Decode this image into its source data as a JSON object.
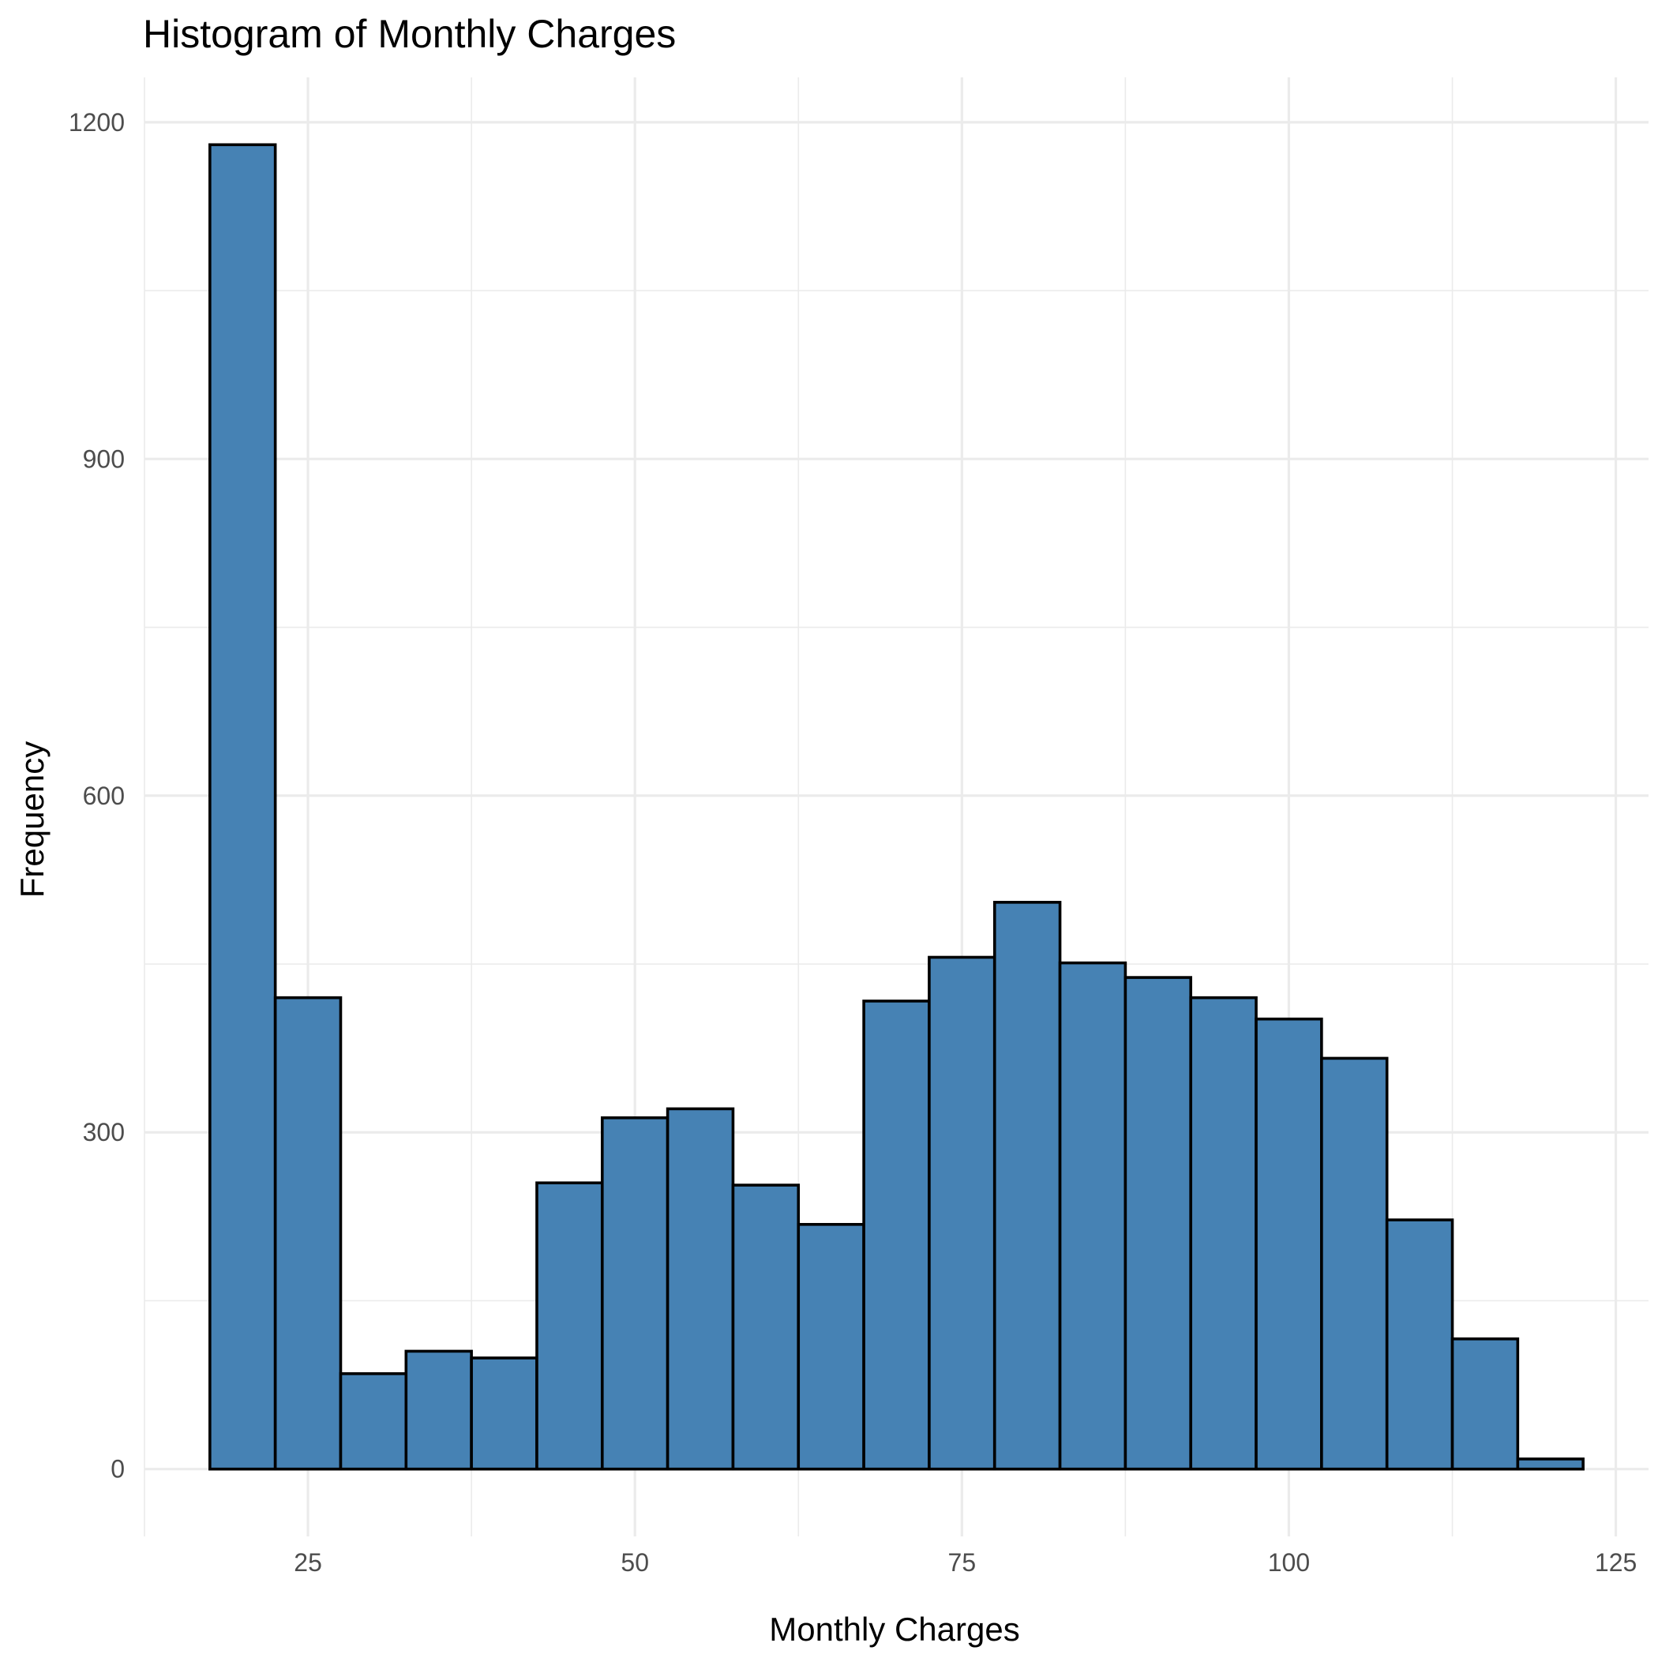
{
  "chart_data": {
    "type": "bar",
    "subtype": "histogram",
    "title": "Histogram of Monthly Charges",
    "xlabel": "Monthly Charges",
    "ylabel": "Frequency",
    "bin_width": 5,
    "bin_edges": [
      17.5,
      22.5,
      27.5,
      32.5,
      37.5,
      42.5,
      47.5,
      52.5,
      57.5,
      62.5,
      67.5,
      72.5,
      77.5,
      82.5,
      87.5,
      92.5,
      97.5,
      102.5,
      107.5,
      112.5,
      117.5,
      122.5
    ],
    "values": [
      1180,
      420,
      85,
      105,
      99,
      255,
      313,
      321,
      253,
      218,
      417,
      456,
      505,
      451,
      438,
      420,
      401,
      366,
      222,
      116,
      9
    ],
    "xlim": [
      12.5,
      127.5
    ],
    "ylim": [
      -60,
      1240
    ],
    "x_ticks": [
      25,
      50,
      75,
      100,
      125
    ],
    "x_tick_labels": [
      "25",
      "50",
      "75",
      "100",
      "125"
    ],
    "y_ticks": [
      0,
      300,
      600,
      900,
      1200
    ],
    "y_tick_labels": [
      "0",
      "300",
      "600",
      "900",
      "1200"
    ],
    "grid": true,
    "bar_fill": "#4682b4",
    "bar_outline": "#000000",
    "grid_color": "#ebebeb",
    "background": "#ffffff"
  }
}
